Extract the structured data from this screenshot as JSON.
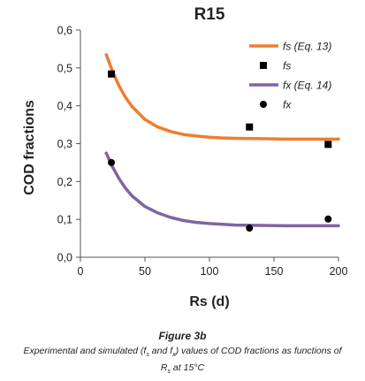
{
  "chart_data": {
    "type": "line",
    "title": "R15",
    "xlabel": "Rs (d)",
    "ylabel": "COD  fractions",
    "xlim": [
      0,
      200
    ],
    "ylim": [
      0,
      0.6
    ],
    "x_ticks": [
      0,
      50,
      100,
      150,
      200
    ],
    "y_ticks": [
      0,
      0.1,
      0.2,
      0.3,
      0.4,
      0.5,
      0.6
    ],
    "x_tick_labels": [
      "0",
      "50",
      "100",
      "150",
      "200"
    ],
    "y_tick_labels": [
      "0,0",
      "0,1",
      "0,2",
      "0,3",
      "0,4",
      "0,5",
      "0,6"
    ],
    "grid": false,
    "legend_position": "top-right",
    "series": [
      {
        "name": "fs (Eq. 13)",
        "kind": "line",
        "color": "#ED7D31",
        "x": [
          20,
          25,
          30,
          35,
          40,
          50,
          60,
          70,
          80,
          90,
          100,
          110,
          120,
          140,
          160,
          180,
          200
        ],
        "y": [
          0.535,
          0.49,
          0.452,
          0.422,
          0.398,
          0.364,
          0.344,
          0.332,
          0.324,
          0.32,
          0.317,
          0.315,
          0.314,
          0.313,
          0.312,
          0.312,
          0.312
        ]
      },
      {
        "name": "fs",
        "kind": "scatter",
        "marker": "square",
        "color": "#000000",
        "x": [
          24,
          131,
          192
        ],
        "y": [
          0.484,
          0.344,
          0.298
        ]
      },
      {
        "name": "fx (Eq. 14)",
        "kind": "line",
        "color": "#8064A2",
        "x": [
          20,
          25,
          30,
          35,
          40,
          50,
          60,
          70,
          80,
          90,
          100,
          110,
          120,
          140,
          160,
          180,
          200
        ],
        "y": [
          0.275,
          0.238,
          0.207,
          0.182,
          0.162,
          0.134,
          0.117,
          0.105,
          0.097,
          0.092,
          0.089,
          0.087,
          0.085,
          0.084,
          0.083,
          0.083,
          0.083
        ]
      },
      {
        "name": "fx",
        "kind": "scatter",
        "marker": "circle",
        "color": "#000000",
        "x": [
          24,
          131,
          192
        ],
        "y": [
          0.25,
          0.077,
          0.101
        ]
      }
    ]
  },
  "caption": {
    "title": "Figure 3b",
    "line_a": "Experimental and simulated (f",
    "sub_s": "s",
    "line_b": " and f",
    "sub_x": "x",
    "line_c": ") values of COD fractions as functions of R",
    "sub_s2": "s",
    "line_d": " at 15°C"
  }
}
